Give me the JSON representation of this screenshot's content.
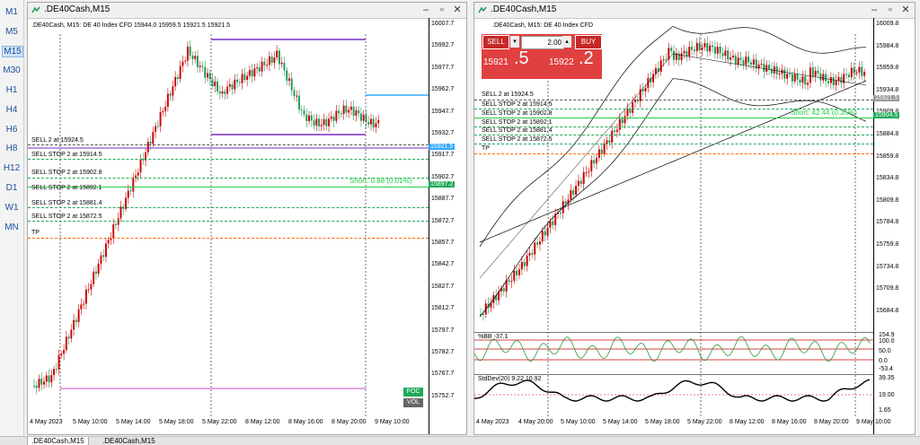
{
  "timeframes": [
    "M1",
    "M5",
    "M15",
    "M30",
    "H1",
    "H4",
    "H6",
    "H8",
    "H12",
    "D1",
    "W1",
    "MN"
  ],
  "active_timeframe": "M15",
  "left_window": {
    "title": ".DE40Cash,M15",
    "header": ".DE40Cash, M15:  DE 40 Index CFD   15944.0 15959.5 15921.5 15921.5",
    "y_labels": [
      "16007.7",
      "15992.7",
      "15977.7",
      "15962.7",
      "15947.7",
      "15932.7",
      "15917.7",
      "15902.7",
      "15887.7",
      "15872.7",
      "15857.7",
      "15842.7",
      "15827.7",
      "15812.7",
      "15797.7",
      "15782.7",
      "15767.7",
      "15752.7"
    ],
    "x_labels": [
      "4 May 2023",
      "5 May 10:00",
      "5 May 14:00",
      "5 May 18:00",
      "5 May 22:00",
      "8 May 12:00",
      "8 May 16:00",
      "8 May 20:00",
      "9 May 10:00"
    ],
    "orders": [
      "SELL 2 at 15924.5",
      "SELL STOP 2 at 15914.5",
      "SELL STOP 2 at 15902.8",
      "SELL STOP 2 at 15892.1",
      "SELL STOP 2 at 15881.4",
      "SELL STOP 2 at 15872.5",
      "TP"
    ],
    "price_tag": "15921.5",
    "short_text": "Short: 0.88 (0.01%)",
    "short_tag": "15897.2",
    "poc_label": "POC",
    "vol_label": "VOL"
  },
  "right_window": {
    "title": ".DE40Cash,M15",
    "header": ".DE40Cash, M15:  DE 40 Index CFD",
    "sell_label": "SELL",
    "buy_label": "BUY",
    "lot_value": "2.00",
    "sell_price_small": "15921",
    "sell_price_big": ".5",
    "buy_price_small": "15922",
    "buy_price_big": ".2",
    "y_labels": [
      "16009.8",
      "15984.8",
      "15959.8",
      "15934.8",
      "15909.8",
      "15884.8",
      "15859.8",
      "15834.8",
      "15809.8",
      "15784.8",
      "15759.8",
      "15734.8",
      "15709.8",
      "15684.8"
    ],
    "x_labels": [
      "4 May 2023",
      "4 May 20:00",
      "5 May 10:00",
      "5 May 14:00",
      "5 May 18:00",
      "5 May 22:00",
      "8 May 12:00",
      "8 May 16:00",
      "8 May 20:00",
      "9 May 10:00"
    ],
    "orders": [
      "SELL 2 at 15924.5",
      "SELL STOP 2 at 15914.5",
      "SELL STOP 2 at 15902.8",
      "SELL STOP 2 at 15892.1",
      "SELL STOP 2 at 15881.4",
      "SELL STOP 2 at 15872.5",
      "TP"
    ],
    "short_text": "Short: 42.44 (0.35%)",
    "price_tag": "15921.5",
    "short_tag": "15904.5",
    "bb_label": "%BB -37.1",
    "bb_levels": [
      "154.9",
      "100.0",
      "50.0",
      "0.0",
      "-53.4"
    ],
    "std_label": "StdDev(20) 9.22 10.92",
    "std_levels": [
      "39.35",
      "19.00",
      "1.65"
    ]
  },
  "tabs": [
    ".DE40Cash,M15",
    ".DE40Cash,M15"
  ],
  "colors": {
    "sell": "#d32f2f",
    "green": "#1faa59",
    "line_blue": "#33aaff",
    "purple": "#7a2bbf",
    "tp": "#ff6600",
    "bearish": "#cc0000",
    "bullish": "#1a9a5a"
  }
}
